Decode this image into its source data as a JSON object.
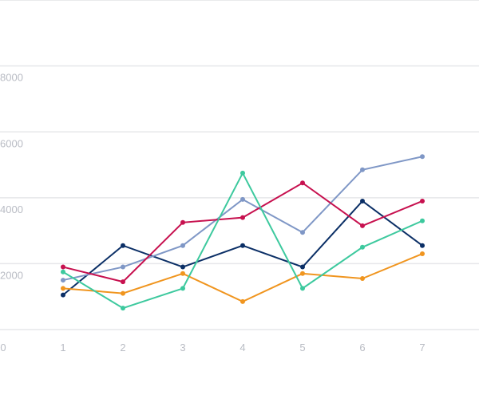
{
  "chart_data": {
    "type": "line",
    "title": "",
    "xlabel": "",
    "ylabel": "",
    "x": [
      1,
      2,
      3,
      4,
      5,
      6,
      7
    ],
    "x_ticks": [
      "0",
      "1",
      "2",
      "3",
      "4",
      "5",
      "6",
      "7"
    ],
    "y_ticks": [
      "2000",
      "4000",
      "6000",
      "8000"
    ],
    "xlim": [
      0,
      8
    ],
    "ylim": [
      0,
      9000
    ],
    "grid": true,
    "legend": "none",
    "series": [
      {
        "color": "#0b2f66",
        "values": [
          1050,
          2550,
          1900,
          2550,
          1900,
          3900,
          2550
        ]
      },
      {
        "color": "#7f97c6",
        "values": [
          1500,
          1900,
          2550,
          3950,
          2950,
          4850,
          5250
        ]
      },
      {
        "color": "#c7114f",
        "values": [
          1900,
          1450,
          3250,
          3400,
          4450,
          3150,
          3900
        ]
      },
      {
        "color": "#f0951f",
        "values": [
          1250,
          1100,
          1700,
          850,
          1700,
          1550,
          2300
        ]
      },
      {
        "color": "#3dc99e",
        "values": [
          1750,
          650,
          1250,
          4750,
          1250,
          2500,
          3300
        ]
      }
    ]
  }
}
